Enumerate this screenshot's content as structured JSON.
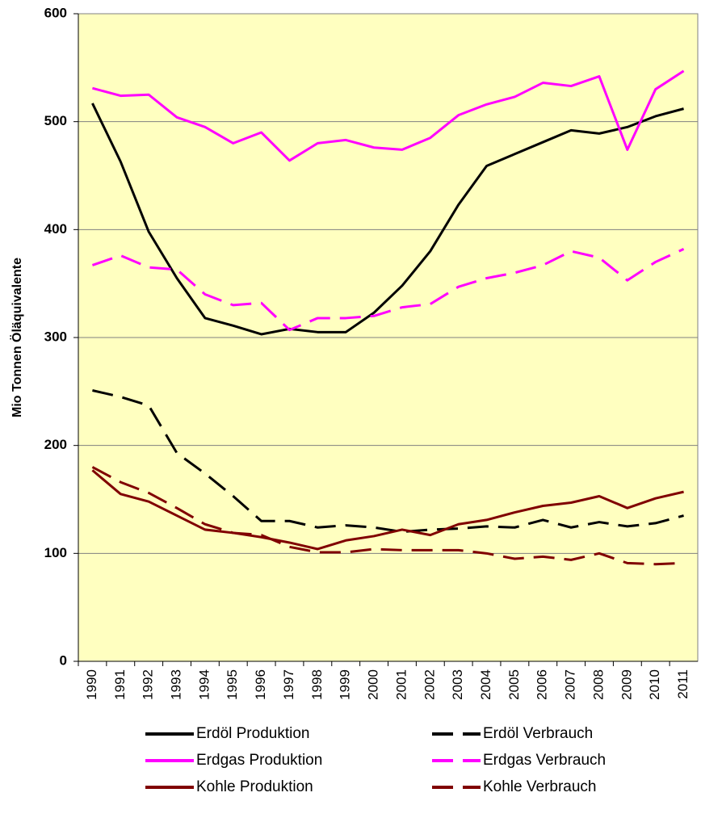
{
  "chart_data": {
    "type": "line",
    "y_label": "Mio Tonnen Öläquivalente",
    "categories": [
      "1990",
      "1991",
      "1992",
      "1993",
      "1994",
      "1995",
      "1996",
      "1997",
      "1998",
      "1999",
      "2000",
      "2001",
      "2002",
      "2003",
      "2004",
      "2005",
      "2006",
      "2007",
      "2008",
      "2009",
      "2010",
      "2011"
    ],
    "series": [
      {
        "name": "Erdöl Produktion",
        "color": "#000000",
        "style": "solid",
        "values": [
          517,
          463,
          398,
          355,
          318,
          311,
          303,
          308,
          305,
          305,
          323,
          348,
          380,
          423,
          459,
          470,
          481,
          492,
          489,
          495,
          505,
          512
        ]
      },
      {
        "name": "Erdöl Verbrauch",
        "color": "#000000",
        "style": "dashed",
        "values": [
          251,
          245,
          237,
          193,
          174,
          153,
          130,
          130,
          124,
          126,
          124,
          120,
          122,
          123,
          125,
          124,
          131,
          124,
          129,
          125,
          128,
          135
        ]
      },
      {
        "name": "Erdgas Produktion",
        "color": "#ff00ff",
        "style": "solid",
        "values": [
          531,
          524,
          525,
          504,
          495,
          480,
          490,
          464,
          480,
          483,
          476,
          474,
          485,
          506,
          516,
          523,
          536,
          533,
          542,
          474,
          530,
          547
        ]
      },
      {
        "name": "Erdgas Verbrauch",
        "color": "#ff00ff",
        "style": "dashed",
        "values": [
          367,
          376,
          365,
          363,
          340,
          330,
          332,
          307,
          318,
          318,
          320,
          328,
          331,
          347,
          355,
          360,
          367,
          380,
          374,
          353,
          370,
          382
        ]
      },
      {
        "name": "Kohle Produktion",
        "color": "#800000",
        "style": "solid",
        "values": [
          177,
          155,
          148,
          135,
          122,
          119,
          115,
          110,
          104,
          112,
          116,
          122,
          117,
          127,
          131,
          138,
          144,
          147,
          153,
          142,
          151,
          157
        ]
      },
      {
        "name": "Kohle Verbrauch",
        "color": "#800000",
        "style": "dashed",
        "values": [
          180,
          166,
          156,
          142,
          127,
          119,
          117,
          106,
          101,
          101,
          104,
          103,
          103,
          103,
          100,
          95,
          97,
          94,
          100,
          91,
          90,
          91
        ]
      }
    ],
    "ylim": [
      0,
      600
    ],
    "yticks": [
      0,
      100,
      200,
      300,
      400,
      500,
      600
    ],
    "grid": true,
    "legend": "bottom"
  }
}
